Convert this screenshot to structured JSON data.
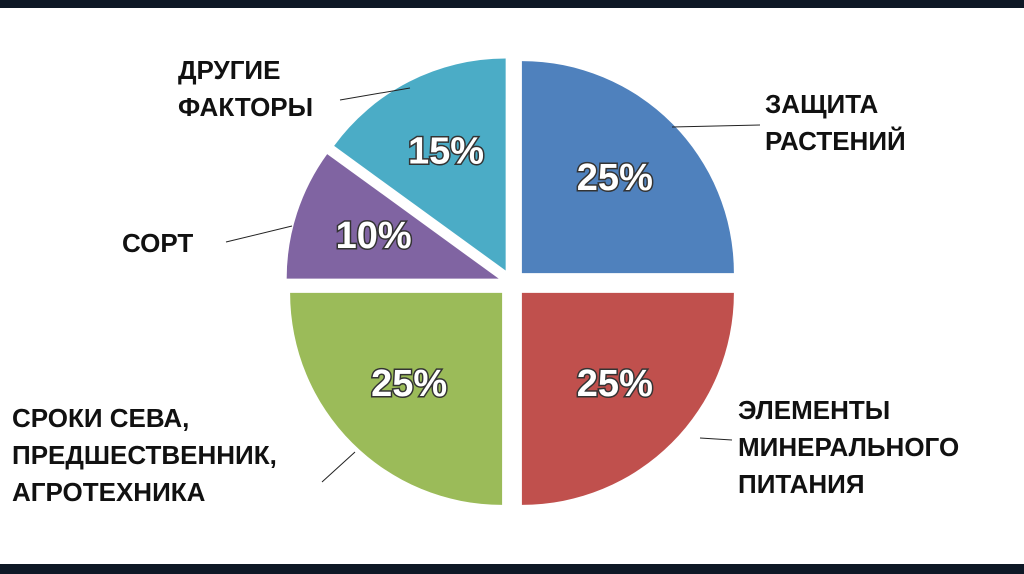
{
  "chart_data": {
    "type": "pie",
    "categories": [
      "ЗАЩИТА РАСТЕНИЙ",
      "ЭЛЕМЕНТЫ МИНЕРАЛЬНОГО ПИТАНИЯ",
      "СРОКИ СЕВА, ПРЕДШЕСТВЕННИК, АГРОТЕХНИКА",
      "СОРТ",
      "ДРУГИЕ ФАКТОРЫ"
    ],
    "values": [
      25,
      25,
      25,
      10,
      15
    ],
    "value_labels": [
      "25%",
      "25%",
      "25%",
      "10%",
      "15%"
    ],
    "colors": [
      "#4f81bd",
      "#c0504d",
      "#9bbb59",
      "#8064a2",
      "#4bacc6"
    ]
  }
}
